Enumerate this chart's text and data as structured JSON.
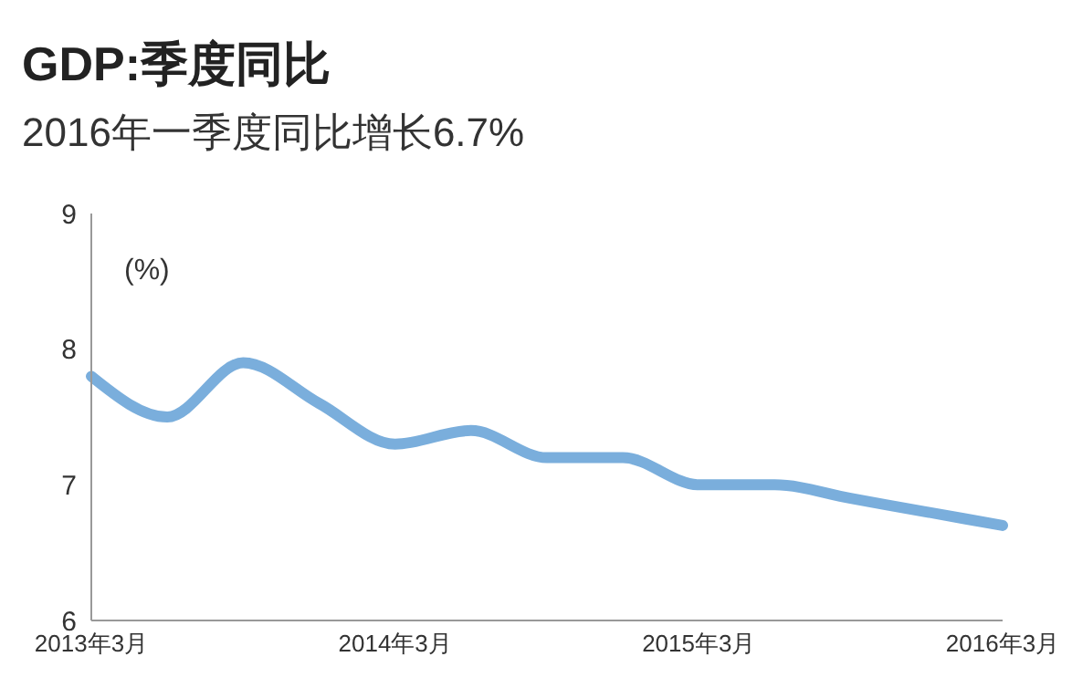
{
  "chart_data": {
    "type": "line",
    "title": "GDP:季度同比",
    "subtitle": "2016年一季度同比增长6.7%",
    "categories": [
      "2013年3月",
      null,
      null,
      null,
      "2014年3月",
      null,
      null,
      null,
      "2015年3月",
      null,
      null,
      null,
      "2016年3月"
    ],
    "series": [
      {
        "color": "#7aaedc",
        "values": [
          7.8,
          7.5,
          7.9,
          7.6,
          7.3,
          7.4,
          7.2,
          7.2,
          7.0,
          7.0,
          6.9,
          6.8,
          6.7
        ]
      }
    ],
    "ylim": [
      6,
      9
    ],
    "yticks": [
      6,
      7,
      8,
      9
    ],
    "annotations": [
      "(%)"
    ]
  }
}
